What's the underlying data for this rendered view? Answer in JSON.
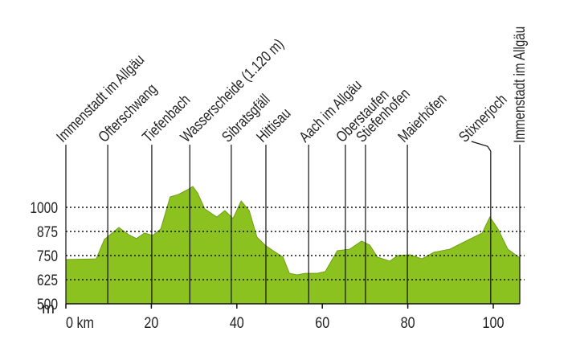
{
  "chart_data": {
    "type": "area",
    "y_unit": "m",
    "color": "#8cc21f",
    "xlim": [
      0,
      106.2
    ],
    "ylim": [
      500,
      1125
    ],
    "xticks": [
      {
        "value": 0,
        "label": "0 km"
      },
      20,
      40,
      60,
      80,
      100
    ],
    "yticks": [
      500,
      625,
      750,
      875,
      1000
    ],
    "grid": true,
    "x": [
      0,
      7.1,
      9,
      12.4,
      14.7,
      16.5,
      18.4,
      20.3,
      22.2,
      24.4,
      26.3,
      28.2,
      29.7,
      30.8,
      32.5,
      35.3,
      37.2,
      39.1,
      41,
      42.9,
      44.7,
      46.6,
      48.5,
      50.8,
      52.3,
      54.1,
      56,
      58.8,
      60.7,
      63.5,
      66.4,
      69.2,
      71.1,
      72.9,
      75.8,
      77.6,
      80.5,
      83.3,
      86.1,
      89.8,
      93.6,
      97.4,
      99.2,
      101.1,
      103.4,
      106.2
    ],
    "values": [
      729,
      733,
      833,
      896,
      858,
      838,
      867,
      854,
      888,
      1054,
      1067,
      1088,
      1108,
      1075,
      992,
      950,
      983,
      942,
      1033,
      983,
      846,
      804,
      775,
      742,
      658,
      650,
      658,
      658,
      667,
      775,
      783,
      825,
      804,
      742,
      721,
      750,
      754,
      733,
      767,
      783,
      825,
      867,
      950,
      888,
      783,
      738
    ],
    "markers": [
      {
        "label": "Immenstadt im Allgäu",
        "x": 0
      },
      {
        "label": "Ofterschwang",
        "x": 9.8
      },
      {
        "label": "Tiefenbach",
        "x": 20.1
      },
      {
        "label": "Wasserscheide (1.120 m)",
        "x": 29
      },
      {
        "label": "Sibratsgfäll",
        "x": 38.7
      },
      {
        "label": "Hittisau",
        "x": 46.8
      },
      {
        "label": "Aach im Allgäu",
        "x": 56.8
      },
      {
        "label": "Oberstaufen",
        "x": 65.4
      },
      {
        "label": "Stiefenhofen",
        "x": 70.1
      },
      {
        "label": "Maierhöfen",
        "x": 79.9
      },
      {
        "label": "Stixnerjoch",
        "x": 99.4
      },
      {
        "label": "Immenstadt im Allgäu",
        "x": 106.2
      }
    ]
  }
}
